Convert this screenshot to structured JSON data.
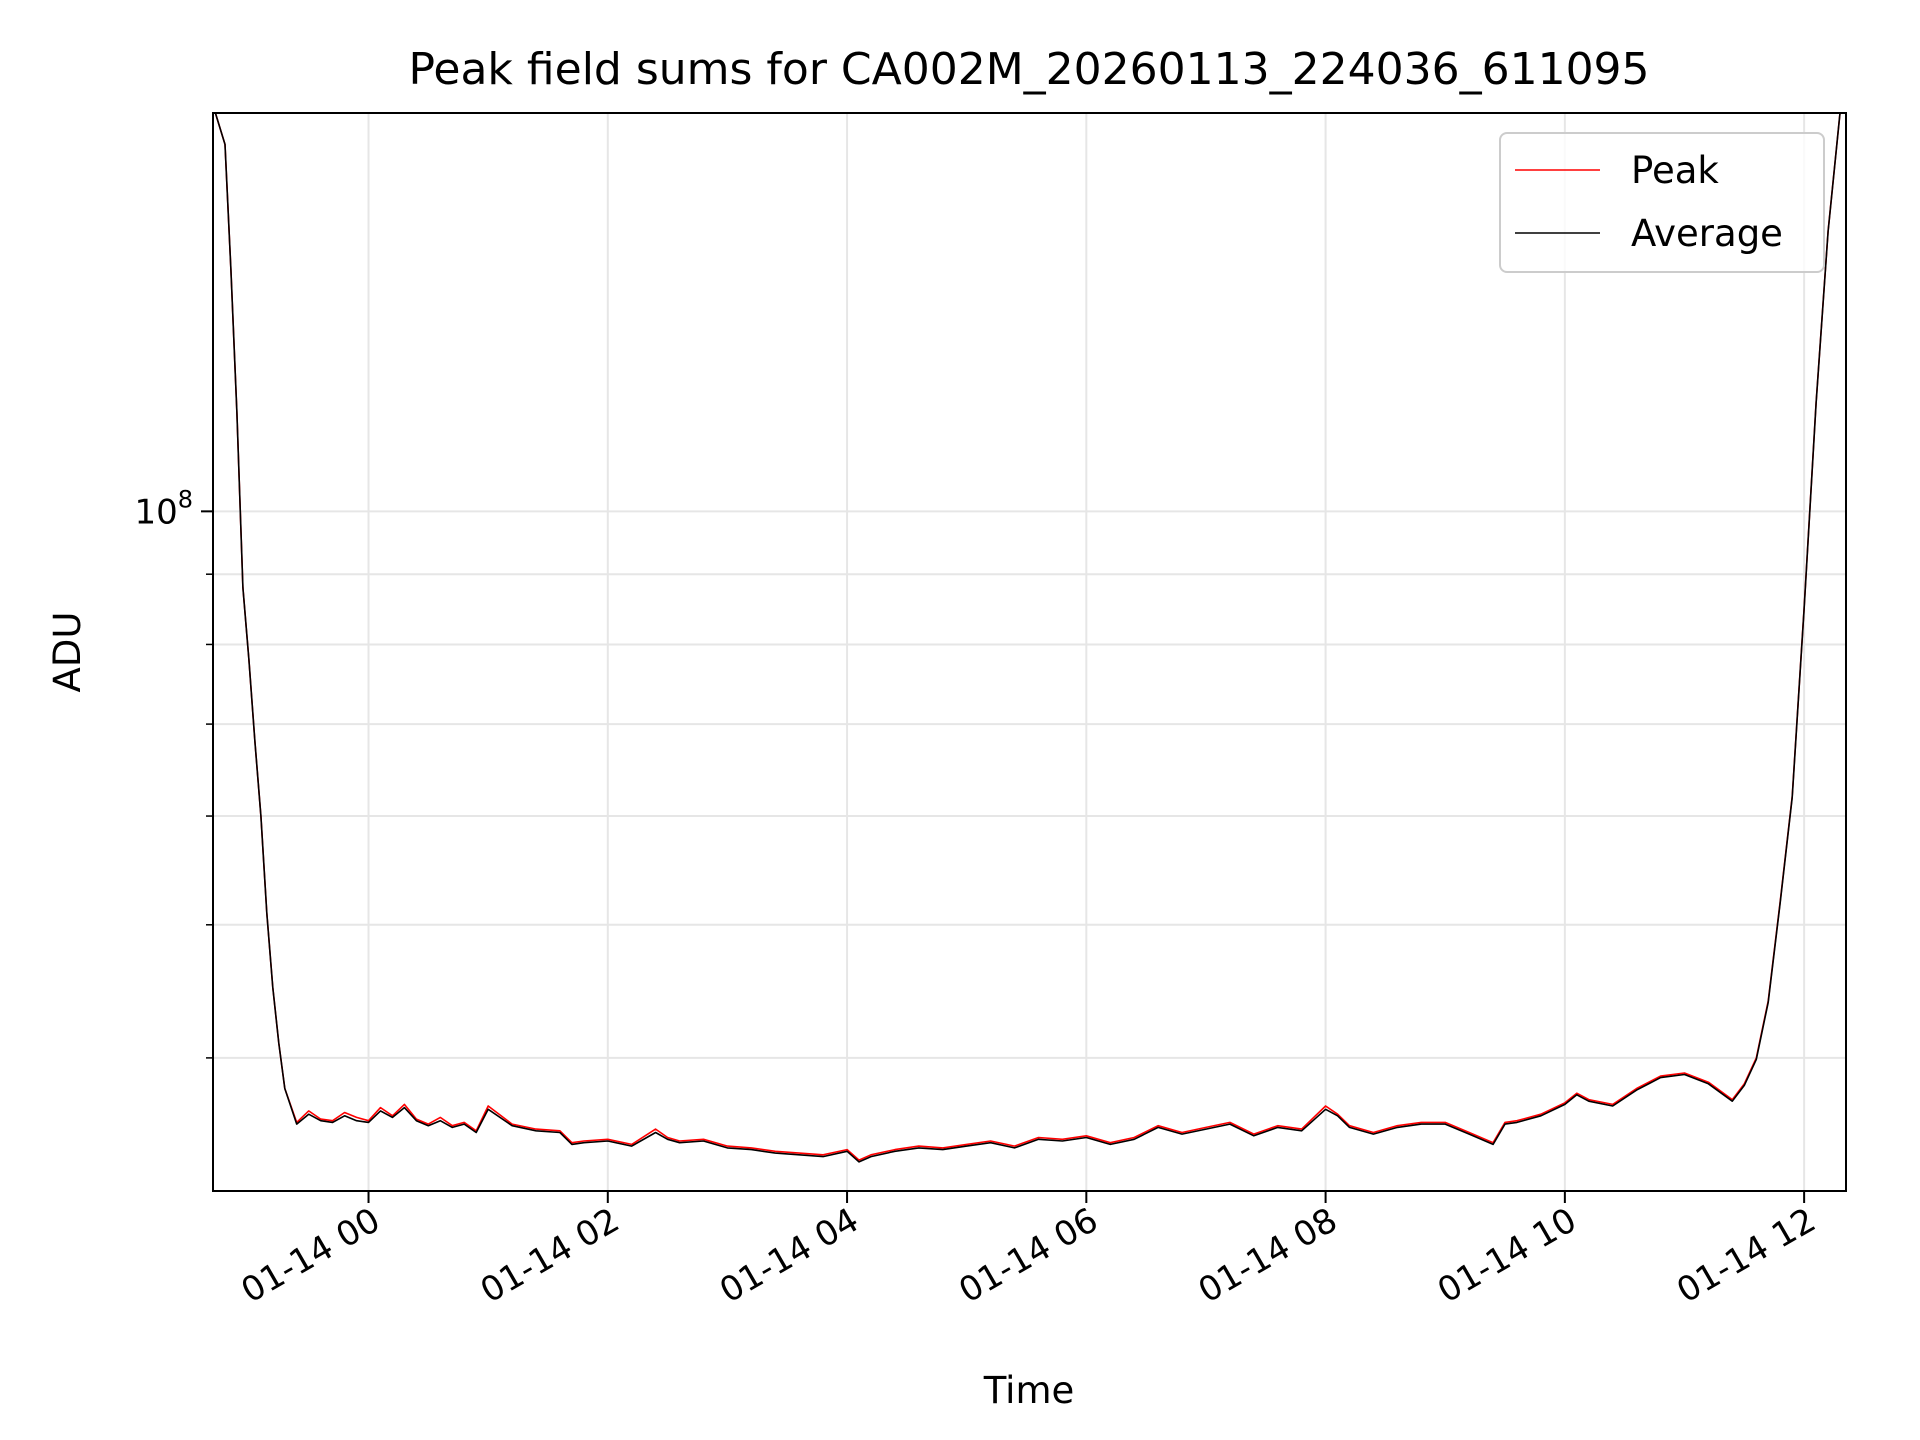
{
  "chart_data": {
    "type": "line",
    "title": "Peak field sums for CA002M_20260113_224036_611095",
    "xlabel": "Time",
    "ylabel": "ADU",
    "yscale": "log",
    "x_unit": "hours since 2026-01-14 00:00",
    "xlim": [
      -1.3,
      12.35
    ],
    "ylim": [
      32000000.0,
      195000000.0
    ],
    "grid": true,
    "legend_position": "top-right",
    "x_ticks": [
      {
        "value": 0,
        "label": "01-14 00"
      },
      {
        "value": 2,
        "label": "01-14 02"
      },
      {
        "value": 4,
        "label": "01-14 04"
      },
      {
        "value": 6,
        "label": "01-14 06"
      },
      {
        "value": 8,
        "label": "01-14 08"
      },
      {
        "value": 10,
        "label": "01-14 10"
      },
      {
        "value": 12,
        "label": "01-14 12"
      }
    ],
    "y_major_ticks": [
      {
        "value": 100000000,
        "base": "10",
        "exp": "8"
      }
    ],
    "y_minor_ticks": [
      40000000,
      50000000,
      60000000,
      70000000,
      80000000,
      90000000,
      200000000
    ],
    "series": [
      {
        "name": "Peak",
        "color": "#ff0000",
        "x": [
          -1.28,
          -1.2,
          -1.15,
          -1.1,
          -1.05,
          -1.0,
          -0.95,
          -0.9,
          -0.85,
          -0.8,
          -0.75,
          -0.7,
          -0.6,
          -0.5,
          -0.4,
          -0.3,
          -0.2,
          -0.1,
          0,
          0.1,
          0.2,
          0.3,
          0.4,
          0.5,
          0.6,
          0.7,
          0.8,
          0.9,
          1.0,
          1.2,
          1.4,
          1.6,
          1.7,
          1.8,
          2.0,
          2.2,
          2.4,
          2.5,
          2.6,
          2.8,
          3.0,
          3.2,
          3.4,
          3.6,
          3.8,
          4.0,
          4.1,
          4.2,
          4.4,
          4.6,
          4.8,
          5.0,
          5.2,
          5.4,
          5.6,
          5.8,
          6.0,
          6.2,
          6.4,
          6.6,
          6.8,
          7.0,
          7.2,
          7.4,
          7.6,
          7.8,
          8.0,
          8.1,
          8.2,
          8.4,
          8.6,
          8.8,
          9.0,
          9.2,
          9.4,
          9.5,
          9.6,
          9.8,
          10.0,
          10.1,
          10.2,
          10.4,
          10.6,
          10.8,
          11.0,
          11.2,
          11.4,
          11.5,
          11.6,
          11.7,
          11.8,
          11.9,
          12.0,
          12.1,
          12.2,
          12.3
        ],
        "y": [
          195000000,
          185000000,
          150000000,
          118000000,
          88000000,
          78000000,
          68000000,
          60000000,
          51000000,
          45000000,
          41000000,
          38000000,
          35900000,
          36600000,
          36100000,
          36000000,
          36500000,
          36200000,
          36000000,
          36800000,
          36300000,
          37000000,
          36100000,
          35800000,
          36200000,
          35700000,
          35900000,
          35400000,
          36900000,
          35800000,
          35500000,
          35400000,
          34700000,
          34800000,
          34900000,
          34600000,
          35500000,
          35000000,
          34800000,
          34900000,
          34500000,
          34400000,
          34200000,
          34100000,
          34000000,
          34300000,
          33700000,
          34000000,
          34300000,
          34500000,
          34400000,
          34600000,
          34800000,
          34500000,
          35000000,
          34900000,
          35100000,
          34700000,
          35000000,
          35700000,
          35300000,
          35600000,
          35900000,
          35200000,
          35700000,
          35500000,
          36900000,
          36400000,
          35700000,
          35300000,
          35700000,
          35900000,
          35900000,
          35300000,
          34700000,
          35900000,
          36000000,
          36400000,
          37100000,
          37700000,
          37300000,
          37000000,
          38000000,
          38800000,
          39000000,
          38400000,
          37300000,
          38300000,
          40000000,
          44000000,
          52000000,
          62000000,
          85000000,
          120000000,
          160000000,
          195000000
        ]
      },
      {
        "name": "Average",
        "color": "#000000",
        "x": [
          -1.28,
          -1.2,
          -1.15,
          -1.1,
          -1.05,
          -1.0,
          -0.95,
          -0.9,
          -0.85,
          -0.8,
          -0.75,
          -0.7,
          -0.6,
          -0.5,
          -0.4,
          -0.3,
          -0.2,
          -0.1,
          0,
          0.1,
          0.2,
          0.3,
          0.4,
          0.5,
          0.6,
          0.7,
          0.8,
          0.9,
          1.0,
          1.2,
          1.4,
          1.6,
          1.7,
          1.8,
          2.0,
          2.2,
          2.4,
          2.5,
          2.6,
          2.8,
          3.0,
          3.2,
          3.4,
          3.6,
          3.8,
          4.0,
          4.1,
          4.2,
          4.4,
          4.6,
          4.8,
          5.0,
          5.2,
          5.4,
          5.6,
          5.8,
          6.0,
          6.2,
          6.4,
          6.6,
          6.8,
          7.0,
          7.2,
          7.4,
          7.6,
          7.8,
          8.0,
          8.1,
          8.2,
          8.4,
          8.6,
          8.8,
          9.0,
          9.2,
          9.4,
          9.5,
          9.6,
          9.8,
          10.0,
          10.1,
          10.2,
          10.4,
          10.6,
          10.8,
          11.0,
          11.2,
          11.4,
          11.5,
          11.6,
          11.7,
          11.8,
          11.9,
          12.0,
          12.1,
          12.2,
          12.3
        ],
        "y": [
          195000000,
          185000000,
          150000000,
          118000000,
          88000000,
          78000000,
          68000000,
          60000000,
          51000000,
          45000000,
          41000000,
          38000000,
          35800000,
          36400000,
          36000000,
          35900000,
          36300000,
          36000000,
          35900000,
          36600000,
          36200000,
          36800000,
          36000000,
          35700000,
          36000000,
          35600000,
          35800000,
          35300000,
          36700000,
          35700000,
          35400000,
          35300000,
          34600000,
          34700000,
          34800000,
          34500000,
          35300000,
          34900000,
          34700000,
          34800000,
          34400000,
          34300000,
          34100000,
          34000000,
          33900000,
          34200000,
          33600000,
          33900000,
          34200000,
          34400000,
          34300000,
          34500000,
          34700000,
          34400000,
          34900000,
          34800000,
          35000000,
          34600000,
          34900000,
          35600000,
          35200000,
          35500000,
          35800000,
          35100000,
          35600000,
          35400000,
          36700000,
          36300000,
          35600000,
          35200000,
          35600000,
          35800000,
          35800000,
          35200000,
          34600000,
          35800000,
          35900000,
          36300000,
          37000000,
          37600000,
          37200000,
          36900000,
          37900000,
          38700000,
          38900000,
          38300000,
          37200000,
          38200000,
          39900000,
          43900000,
          51900000,
          61900000,
          84900000,
          119900000,
          159900000,
          195000000
        ]
      }
    ]
  }
}
